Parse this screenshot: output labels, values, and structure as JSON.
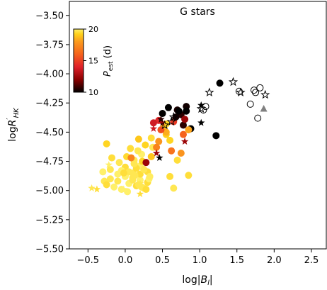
{
  "chart_data": {
    "type": "scatter",
    "title": "G stars",
    "xlabel": "log|B_l|",
    "ylabel": "logR'_HK",
    "xlim": [
      -0.75,
      2.7
    ],
    "ylim": [
      -5.5,
      -3.38
    ],
    "xticks": [
      -0.5,
      0.0,
      0.5,
      1.0,
      1.5,
      2.0,
      2.5
    ],
    "xtick_labels": [
      "−0.5",
      "0.0",
      "0.5",
      "1.0",
      "1.5",
      "2.0",
      "2.5"
    ],
    "yticks": [
      -5.5,
      -5.25,
      -5.0,
      -4.75,
      -4.5,
      -4.25,
      -4.0,
      -3.75,
      -3.5
    ],
    "ytick_labels": [
      "−5.50",
      "−5.25",
      "−5.00",
      "−4.75",
      "−4.50",
      "−4.25",
      "−4.00",
      "−3.75",
      "−3.50"
    ],
    "grid": false,
    "colorbar": {
      "label": "P_est (d)",
      "range": [
        10,
        20
      ],
      "ticks": [
        10,
        15,
        20
      ],
      "tick_labels": [
        "10",
        "15",
        "20"
      ],
      "colormap": [
        "#000000",
        "#8b0000",
        "#e0202a",
        "#f5621c",
        "#fb9a1e",
        "#ffd21a",
        "#fff06a"
      ]
    },
    "markers": {
      "circle_filled": {
        "x": [
          -0.28,
          -0.3,
          -0.25,
          -0.2,
          -0.15,
          -0.1,
          -0.05,
          0.0,
          0.05,
          0.1,
          0.15,
          0.2,
          0.25,
          0.3,
          -0.2,
          -0.1,
          0.0,
          0.1,
          0.2,
          -0.18,
          -0.08,
          0.02,
          0.12,
          0.22,
          0.07,
          0.17,
          0.27,
          0.37,
          0.0,
          0.1,
          0.2,
          -0.05,
          0.05,
          0.15,
          0.25,
          0.12,
          0.3,
          0.22,
          0.32,
          -0.25,
          -0.02,
          0.08,
          0.18,
          0.28,
          0.03,
          0.13,
          0.23,
          0.33,
          0.18,
          0.35,
          0.45,
          0.42,
          0.52,
          0.62,
          0.55,
          0.65,
          0.75,
          0.58,
          0.68,
          0.78,
          0.88,
          0.7,
          0.8,
          0.6,
          0.45,
          0.5,
          0.55,
          0.72,
          0.82,
          0.6,
          0.85,
          0.65,
          0.7,
          0.75,
          0.78,
          0.85,
          0.55,
          0.48,
          0.38,
          0.82,
          0.25,
          0.35,
          1.27,
          1.22,
          0.28
        ],
        "y": [
          -4.92,
          -4.84,
          -4.95,
          -4.9,
          -4.97,
          -4.92,
          -4.99,
          -4.87,
          -4.94,
          -4.89,
          -4.96,
          -4.91,
          -4.98,
          -4.93,
          -4.82,
          -4.86,
          -4.8,
          -4.85,
          -4.79,
          -4.72,
          -4.76,
          -4.71,
          -4.74,
          -4.69,
          -4.64,
          -4.66,
          -4.61,
          -4.63,
          -4.88,
          -4.91,
          -4.86,
          -4.83,
          -4.84,
          -4.81,
          -4.82,
          -4.77,
          -4.84,
          -4.97,
          -4.9,
          -4.6,
          -4.85,
          -4.72,
          -4.95,
          -4.99,
          -5.01,
          -4.87,
          -4.75,
          -4.88,
          -4.56,
          -4.55,
          -4.58,
          -4.63,
          -4.45,
          -4.66,
          -4.52,
          -4.41,
          -4.35,
          -4.29,
          -4.37,
          -4.44,
          -4.47,
          -4.31,
          -4.39,
          -4.88,
          -4.4,
          -4.34,
          -4.5,
          -4.32,
          -4.28,
          -4.57,
          -4.87,
          -4.98,
          -4.74,
          -4.68,
          -4.52,
          -4.48,
          -4.43,
          -4.48,
          -4.42,
          -4.32,
          -4.82,
          -4.71,
          -4.08,
          -4.53,
          -4.76
        ],
        "color_value": [
          19.5,
          20,
          19,
          19.5,
          20,
          19.5,
          20,
          19,
          20,
          19.5,
          19,
          20,
          19.5,
          19,
          19.5,
          20,
          19,
          19.5,
          20,
          19,
          19.5,
          18.8,
          19.5,
          20,
          19,
          19.5,
          18.5,
          19.5,
          20,
          19.5,
          19,
          20,
          19.5,
          19,
          20,
          19.5,
          19,
          19.5,
          20,
          18.5,
          19,
          16,
          19.5,
          19,
          20,
          19.5,
          18.5,
          19.8,
          18,
          19,
          16.5,
          16,
          18,
          15.5,
          18.2,
          14,
          10.5,
          10,
          10.2,
          10.5,
          10,
          10.3,
          12,
          19,
          13.5,
          10,
          17.2,
          10,
          10.2,
          18.5,
          19,
          19.5,
          19,
          16.5,
          15,
          17,
          18.5,
          14.5,
          13,
          10,
          19.5,
          18,
          10,
          10,
          12
        ]
      },
      "star_filled": {
        "x": [
          -0.45,
          -0.38,
          -0.02,
          0.2,
          0.38,
          0.5,
          0.46,
          0.8,
          1.02,
          1.02,
          0.48,
          0.2,
          -0.22,
          0.42
        ],
        "y": [
          -4.98,
          -4.99,
          -4.99,
          -5.03,
          -4.47,
          -4.42,
          -4.72,
          -4.58,
          -4.42,
          -4.27,
          -4.39,
          -4.94,
          -4.78,
          -4.68
        ],
        "color_value": [
          19.5,
          19,
          20,
          19,
          13,
          12,
          10,
          12,
          10,
          10,
          10.5,
          19.5,
          20,
          12
        ]
      },
      "star_open": {
        "x": [
          0.65,
          0.62,
          0.53,
          1.02,
          1.13,
          1.45,
          1.55,
          1.88
        ],
        "y": [
          -4.37,
          -4.41,
          -4.44,
          -4.3,
          -4.16,
          -4.07,
          -4.16,
          -4.18
        ],
        "edgecolor": "#000000"
      },
      "circle_open": {
        "x": [
          1.08,
          1.05,
          1.53,
          1.68,
          1.73,
          1.78,
          1.81,
          1.75
        ],
        "y": [
          -4.28,
          -4.31,
          -4.15,
          -4.26,
          -4.14,
          -4.38,
          -4.12,
          -4.16
        ],
        "edgecolor": "#000000"
      },
      "triangle_filled": {
        "x": [
          1.86
        ],
        "y": [
          -4.3
        ],
        "color": "#808080"
      }
    }
  }
}
